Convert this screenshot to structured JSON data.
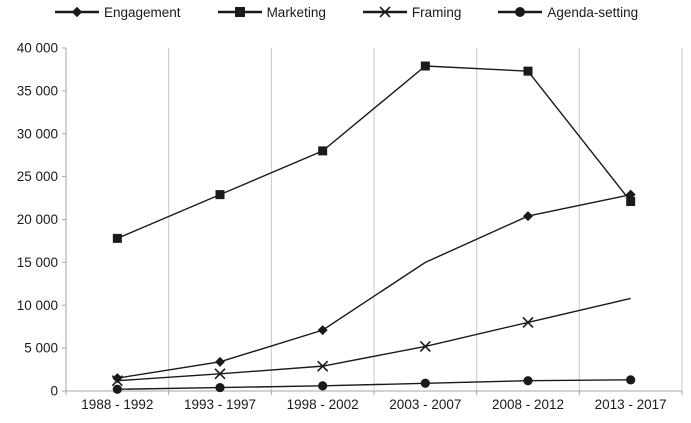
{
  "chart_data": {
    "type": "line",
    "title": "",
    "xlabel": "",
    "ylabel": "",
    "categories": [
      "1988 - 1992",
      "1993 - 1997",
      "1998 - 2002",
      "2003 - 2007",
      "2008 - 2012",
      "2013 - 2017"
    ],
    "series": [
      {
        "name": "Engagement",
        "marker": "diamond",
        "values": [
          1500,
          3400,
          7100,
          15000,
          20400,
          22900
        ],
        "marker_visible": [
          true,
          true,
          true,
          false,
          true,
          true
        ]
      },
      {
        "name": "Marketing",
        "marker": "square",
        "values": [
          17800,
          22900,
          28000,
          37900,
          37300,
          22100
        ],
        "marker_visible": [
          true,
          true,
          true,
          true,
          true,
          true
        ]
      },
      {
        "name": "Framing",
        "marker": "x",
        "values": [
          1200,
          2000,
          2900,
          5200,
          8000,
          10800
        ],
        "marker_visible": [
          true,
          true,
          true,
          true,
          true,
          false
        ]
      },
      {
        "name": "Agenda-setting",
        "marker": "circle",
        "values": [
          200,
          400,
          600,
          900,
          1200,
          1300
        ],
        "marker_visible": [
          true,
          true,
          true,
          true,
          true,
          true
        ]
      }
    ],
    "ylim": [
      0,
      40000
    ],
    "y_tick_step": 5000,
    "y_tick_labels": [
      "0",
      "5 000",
      "10 000",
      "15 000",
      "20 000",
      "25 000",
      "30 000",
      "35 000",
      "40 000"
    ],
    "grid": "vertical-only",
    "legend_position": "top",
    "colors": {
      "line": "#1a1a1a",
      "marker": "#1a1a1a",
      "grid": "#c9c9c9",
      "axis": "#a6a6a6",
      "text": "#1a1a1a"
    }
  }
}
